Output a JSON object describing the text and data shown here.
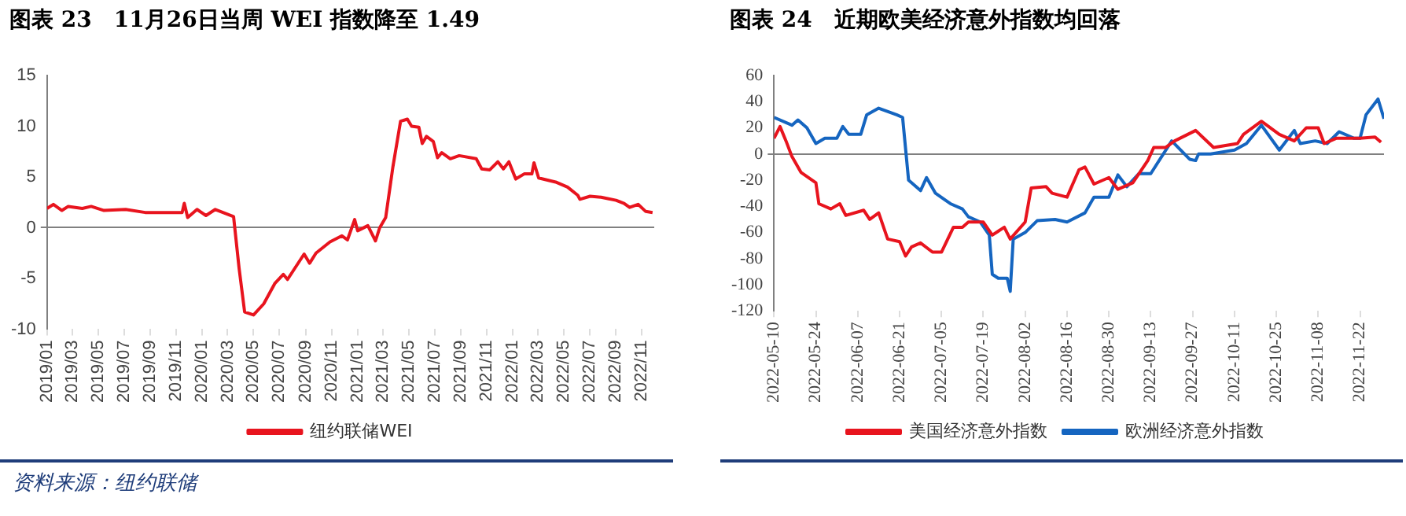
{
  "chart_data": [
    {
      "type": "line",
      "title": "图表 23　11月26日当周 WEI 指数降至 1.49",
      "series": [
        {
          "name": "纽约联储WEI",
          "color": "#e8141e",
          "x": [
            "2019-01-01",
            "2019-01-16",
            "2019-02-05",
            "2019-02-20",
            "2019-03-25",
            "2019-04-15",
            "2019-05-15",
            "2019-07-05",
            "2019-08-20",
            "2019-10-15",
            "2019-11-15",
            "2019-11-20",
            "2019-11-28",
            "2019-12-20",
            "2020-01-10",
            "2020-02-01",
            "2020-02-25",
            "2020-03-15",
            "2020-03-28",
            "2020-04-10",
            "2020-05-01",
            "2020-05-25",
            "2020-06-20",
            "2020-07-10",
            "2020-07-20",
            "2020-08-28",
            "2020-09-10",
            "2020-09-25",
            "2020-10-28",
            "2020-11-25",
            "2020-12-08",
            "2020-12-25",
            "2021-01-01",
            "2021-01-25",
            "2021-02-12",
            "2021-02-22",
            "2021-03-08",
            "2021-03-25",
            "2021-04-12",
            "2021-04-28",
            "2021-05-08",
            "2021-05-25",
            "2021-06-02",
            "2021-06-12",
            "2021-06-28",
            "2021-07-08",
            "2021-07-18",
            "2021-08-07",
            "2021-08-28",
            "2021-10-07",
            "2021-10-20",
            "2021-11-08",
            "2021-11-27",
            "2021-12-10",
            "2021-12-23",
            "2022-01-08",
            "2022-01-28",
            "2022-02-15",
            "2022-02-20",
            "2022-03-03",
            "2022-04-12",
            "2022-05-10",
            "2022-06-03",
            "2022-06-08",
            "2022-07-02",
            "2022-07-28",
            "2022-09-01",
            "2022-09-20",
            "2022-10-03",
            "2022-10-23",
            "2022-11-10",
            "2022-11-26"
          ],
          "values": [
            1.9,
            2.3,
            1.7,
            2.1,
            1.9,
            2.1,
            1.7,
            1.8,
            1.5,
            1.5,
            1.5,
            2.4,
            1.0,
            1.8,
            1.2,
            1.8,
            1.4,
            1.1,
            -4,
            -8.3,
            -8.6,
            -7.5,
            -5.5,
            -4.6,
            -5.1,
            -2.6,
            -3.5,
            -2.5,
            -1.4,
            -0.8,
            -1.2,
            0.8,
            -0.3,
            0.2,
            -1.3,
            0.0,
            1.0,
            6.0,
            10.5,
            10.7,
            10.0,
            9.9,
            8.3,
            9.0,
            8.5,
            6.9,
            7.4,
            6.8,
            7.1,
            6.8,
            5.8,
            5.7,
            6.5,
            5.8,
            6.5,
            4.8,
            5.3,
            5.3,
            6.4,
            4.9,
            4.5,
            4.0,
            3.2,
            2.8,
            3.1,
            3.0,
            2.7,
            2.4,
            2.0,
            2.3,
            1.6,
            1.49
          ]
        }
      ],
      "xlim": [
        "2019-01-01",
        "2022-11-30"
      ],
      "xticks": [
        {
          "value": "2019-01",
          "label": "2019/01"
        },
        {
          "value": "2019-03",
          "label": "2019/03"
        },
        {
          "value": "2019-05",
          "label": "2019/05"
        },
        {
          "value": "2019-07",
          "label": "2019/07"
        },
        {
          "value": "2019-09",
          "label": "2019/09"
        },
        {
          "value": "2019-11",
          "label": "2019/11"
        },
        {
          "value": "2020-01",
          "label": "2020/01"
        },
        {
          "value": "2020-03",
          "label": "2020/03"
        },
        {
          "value": "2020-05",
          "label": "2020/05"
        },
        {
          "value": "2020-07",
          "label": "2020/07"
        },
        {
          "value": "2020-09",
          "label": "2020/09"
        },
        {
          "value": "2020-11",
          "label": "2020/11"
        },
        {
          "value": "2021-01",
          "label": "2021/01"
        },
        {
          "value": "2021-03",
          "label": "2021/03"
        },
        {
          "value": "2021-05",
          "label": "2021/05"
        },
        {
          "value": "2021-07",
          "label": "2021/07"
        },
        {
          "value": "2021-09",
          "label": "2021/09"
        },
        {
          "value": "2021-11",
          "label": "2021/11"
        },
        {
          "value": "2022-01",
          "label": "2022/01"
        },
        {
          "value": "2022-03",
          "label": "2022/03"
        },
        {
          "value": "2022-05",
          "label": "2022/05"
        },
        {
          "value": "2022-07",
          "label": "2022/07"
        },
        {
          "value": "2022-09",
          "label": "2022/09"
        },
        {
          "value": "2022-11",
          "label": "2022/11"
        }
      ],
      "ylim": [
        -10,
        15
      ],
      "yticks": [
        -10,
        -5,
        0,
        5,
        10,
        15
      ],
      "legend": "bottom",
      "annotations": [
        "资料来源：纽约联储"
      ]
    },
    {
      "type": "line",
      "title": "图表 24　近期欧美经济意外指数均回落",
      "series": [
        {
          "name": "美国经济意外指数",
          "color": "#e8141e",
          "x": [
            "2022-05-10",
            "2022-05-12",
            "2022-05-14",
            "2022-05-16",
            "2022-05-19",
            "2022-05-24",
            "2022-05-25",
            "2022-05-29",
            "2022-06-01",
            "2022-06-03",
            "2022-06-09",
            "2022-06-11",
            "2022-06-14",
            "2022-06-17",
            "2022-06-21",
            "2022-06-23",
            "2022-06-25",
            "2022-06-28",
            "2022-07-02",
            "2022-07-05",
            "2022-07-09",
            "2022-07-12",
            "2022-07-14",
            "2022-07-19",
            "2022-07-22",
            "2022-07-26",
            "2022-07-28",
            "2022-08-02",
            "2022-08-04",
            "2022-08-09",
            "2022-08-11",
            "2022-08-16",
            "2022-08-20",
            "2022-08-22",
            "2022-08-25",
            "2022-08-30",
            "2022-09-02",
            "2022-09-07",
            "2022-09-12",
            "2022-09-14",
            "2022-09-18",
            "2022-09-21",
            "2022-09-28",
            "2022-10-04",
            "2022-10-12",
            "2022-10-14",
            "2022-10-20",
            "2022-10-26",
            "2022-10-31",
            "2022-11-04",
            "2022-11-08",
            "2022-11-10",
            "2022-11-14",
            "2022-11-22",
            "2022-11-27",
            "2022-11-29"
          ],
          "values": [
            12,
            21,
            10,
            -2,
            -14,
            -22,
            -38,
            -42,
            -38,
            -47,
            -43,
            -50,
            -45,
            -65,
            -67,
            -78,
            -71,
            -68,
            -75,
            -75,
            -56,
            -56,
            -52,
            -52,
            -62,
            -56,
            -65,
            -52,
            -26,
            -25,
            -30,
            -33,
            -12,
            -10,
            -23,
            -18,
            -27,
            -22,
            -5,
            5,
            5,
            10,
            18,
            5,
            8,
            15,
            25,
            15,
            10,
            20,
            20,
            8,
            12,
            12,
            13,
            9
          ]
        },
        {
          "name": "欧洲经济意外指数",
          "color": "#1565c0",
          "x": [
            "2022-05-10",
            "2022-05-16",
            "2022-05-18",
            "2022-05-21",
            "2022-05-24",
            "2022-05-27",
            "2022-05-31",
            "2022-06-02",
            "2022-06-04",
            "2022-06-08",
            "2022-06-10",
            "2022-06-14",
            "2022-06-20",
            "2022-06-22",
            "2022-06-24",
            "2022-06-28",
            "2022-06-30",
            "2022-07-03",
            "2022-07-08",
            "2022-07-12",
            "2022-07-14",
            "2022-07-18",
            "2022-07-21",
            "2022-07-22",
            "2022-07-24",
            "2022-07-27",
            "2022-07-28",
            "2022-07-29",
            "2022-08-02",
            "2022-08-06",
            "2022-08-12",
            "2022-08-16",
            "2022-08-22",
            "2022-08-25",
            "2022-08-30",
            "2022-09-02",
            "2022-09-05",
            "2022-09-09",
            "2022-09-13",
            "2022-09-20",
            "2022-09-26",
            "2022-09-28",
            "2022-09-29",
            "2022-10-03",
            "2022-10-11",
            "2022-10-15",
            "2022-10-20",
            "2022-10-26",
            "2022-10-31",
            "2022-11-02",
            "2022-11-07",
            "2022-11-11",
            "2022-11-15",
            "2022-11-20",
            "2022-11-22",
            "2022-11-24",
            "2022-11-28",
            "2022-11-30"
          ],
          "values": [
            28,
            22,
            26,
            20,
            8,
            12,
            12,
            21,
            15,
            15,
            30,
            35,
            30,
            28,
            -20,
            -28,
            -18,
            -30,
            -38,
            -42,
            -48,
            -52,
            -62,
            -92,
            -95,
            -95,
            -105,
            -65,
            -60,
            -51,
            -50,
            -52,
            -45,
            -33,
            -33,
            -16,
            -25,
            -15,
            -15,
            10,
            -4,
            -5,
            0,
            0,
            3,
            8,
            22,
            3,
            18,
            8,
            10,
            8,
            17,
            12,
            12,
            30,
            42,
            27
          ]
        }
      ],
      "xlim": [
        "2022-05-10",
        "2022-11-30"
      ],
      "xticks": [
        "2022-05-10",
        "2022-05-24",
        "2022-06-07",
        "2022-06-21",
        "2022-07-05",
        "2022-07-19",
        "2022-08-02",
        "2022-08-16",
        "2022-08-30",
        "2022-09-13",
        "2022-09-27",
        "2022-10-11",
        "2022-10-25",
        "2022-11-08",
        "2022-11-22"
      ],
      "ylim": [
        -120,
        60
      ],
      "yticks": [
        -120,
        -100,
        -80,
        -60,
        -40,
        -20,
        0,
        20,
        40,
        60
      ],
      "legend": "bottom"
    }
  ]
}
